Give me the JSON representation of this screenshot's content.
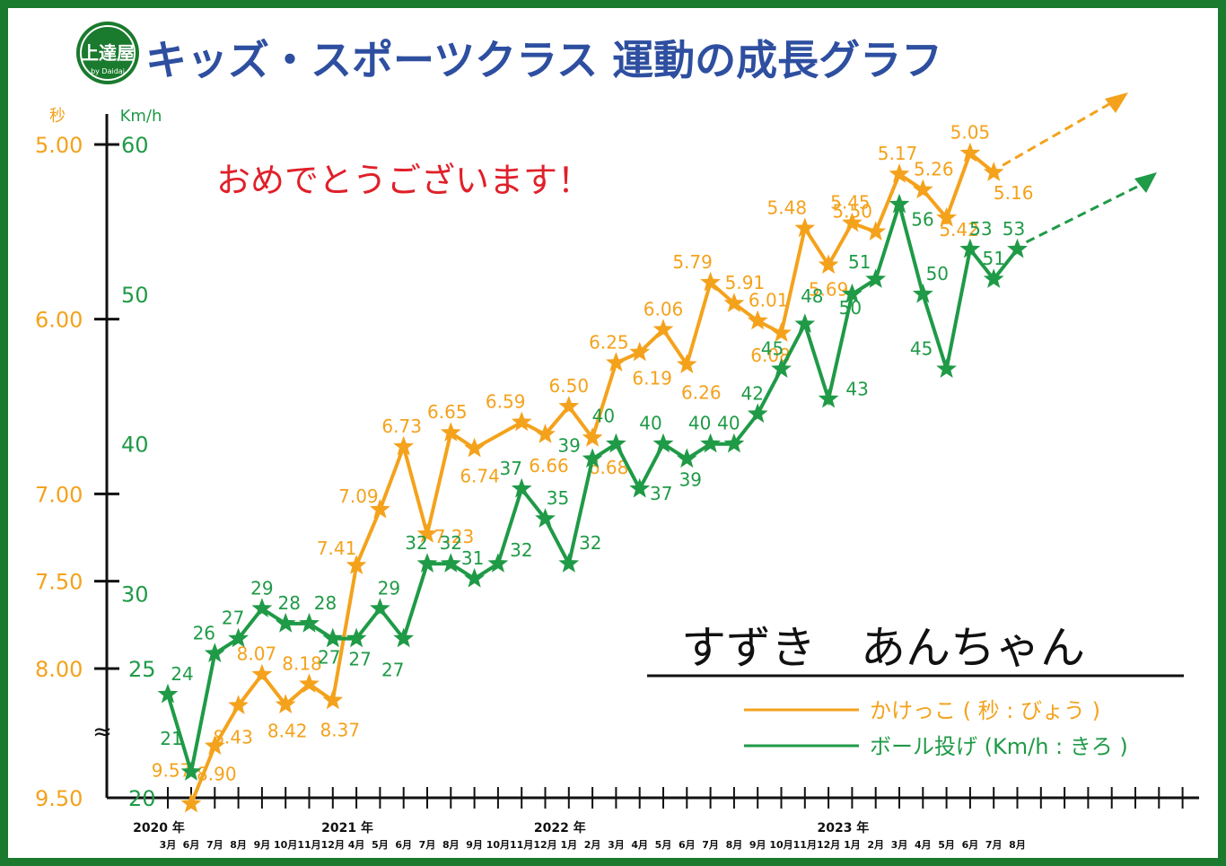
{
  "title": "キッズ・スポーツクラス 運動の成長グラフ",
  "logo_text": "上達屋",
  "logo_subtext": "by Daidai",
  "congrats": "おめでとうございます！",
  "student_name": "すずき　あんちゃん",
  "axis": {
    "left_unit": "秒",
    "right_unit": "Km/h",
    "left_ticks": [
      "5.00",
      "6.00",
      "7.00",
      "7.50",
      "8.00",
      "9.50"
    ],
    "right_ticks": [
      "60",
      "50",
      "40",
      "30",
      "25",
      "20"
    ],
    "break_mark": "≈"
  },
  "x_axis": {
    "years": [
      "2020 年",
      "2021 年",
      "2022 年",
      "2023 年"
    ],
    "months": [
      "3月",
      "6月",
      "7月",
      "8月",
      "9月",
      "10月",
      "11月",
      "12月",
      "4月",
      "5月",
      "6月",
      "7月",
      "8月",
      "9月",
      "10月",
      "11月",
      "12月",
      "1月",
      "2月",
      "3月",
      "4月",
      "5月",
      "6月",
      "7月",
      "8月",
      "9月",
      "10月",
      "11月",
      "12月",
      "1月",
      "2月",
      "3月",
      "4月",
      "5月",
      "6月",
      "7月",
      "8月"
    ]
  },
  "colors": {
    "running": "#f4a21c",
    "throwing": "#1f9a47",
    "title": "#2e4fa0",
    "frame": "#1a7a2e",
    "congrats": "#e0202a"
  },
  "chart_data": {
    "type": "line",
    "title": "キッズ・スポーツクラス 運動の成長グラフ",
    "x": [
      "2020-03",
      "2020-06",
      "2020-07",
      "2020-08",
      "2020-09",
      "2020-10",
      "2020-11",
      "2020-12",
      "2021-04",
      "2021-05",
      "2021-06",
      "2021-07",
      "2021-08",
      "2021-09",
      "2021-10",
      "2021-11",
      "2021-12",
      "2022-01",
      "2022-02",
      "2022-03",
      "2022-04",
      "2022-05",
      "2022-06",
      "2022-07",
      "2022-08",
      "2022-09",
      "2022-10",
      "2022-11",
      "2022-12",
      "2023-01",
      "2023-02",
      "2023-03",
      "2023-04",
      "2023-05",
      "2023-06",
      "2023-07",
      "2023-08"
    ],
    "series": [
      {
        "name": "かけっこ ( 秒 : びょう )",
        "axis": "left",
        "values": [
          null,
          9.57,
          8.9,
          8.43,
          8.07,
          8.42,
          8.18,
          8.37,
          7.41,
          7.09,
          6.73,
          7.23,
          6.65,
          6.74,
          null,
          6.59,
          6.66,
          6.5,
          6.68,
          6.25,
          6.19,
          6.06,
          6.26,
          5.79,
          5.91,
          6.01,
          6.08,
          5.48,
          5.69,
          5.45,
          5.5,
          5.17,
          5.26,
          5.42,
          5.05,
          5.16,
          null
        ],
        "labels": [
          "",
          "9.57",
          "8.90",
          "8.43",
          "8.07",
          "8.42",
          "8.18",
          "8.37",
          "7.41",
          "7.09",
          "6.73",
          "7.23",
          "6.65",
          "6.74",
          "",
          "6.59",
          "6.66",
          "6.50",
          "6.68",
          "6.25",
          "6.19",
          "6.06",
          "6.26",
          "5.79",
          "5.91",
          "6.01",
          "6.08",
          "5.48",
          "5.69",
          "5.45",
          "5.50",
          "5.17",
          "5.26",
          "5.42",
          "5.05",
          "5.16",
          ""
        ]
      },
      {
        "name": "ボール投げ (Km/h : きろ )",
        "axis": "right",
        "values": [
          24,
          21,
          26,
          27,
          29,
          28,
          28,
          27,
          27,
          29,
          27,
          32,
          32,
          31,
          32,
          37,
          35,
          32,
          39,
          40,
          37,
          40,
          39,
          40,
          40,
          42,
          45,
          48,
          43,
          50,
          51,
          56,
          50,
          45,
          53,
          51,
          53
        ],
        "labels": [
          "24",
          "21",
          "26",
          "27",
          "29",
          "28",
          "28",
          "27",
          "27",
          "29",
          "27",
          "32",
          "32",
          "31",
          "32",
          "37",
          "35",
          "32",
          "39",
          "40",
          "37",
          "40",
          "39",
          "40",
          "40",
          "42",
          "45",
          "48",
          "43",
          "50",
          "51",
          "56",
          "50",
          "45",
          "53",
          "51",
          "53"
        ]
      }
    ],
    "left_axis": {
      "label": "秒",
      "range": [
        5.0,
        9.5
      ],
      "ticks": [
        5.0,
        6.0,
        7.0,
        7.5,
        8.0,
        9.5
      ],
      "inverted": true,
      "broken": true
    },
    "right_axis": {
      "label": "Km/h",
      "range": [
        20,
        60
      ],
      "ticks": [
        20,
        25,
        30,
        40,
        50,
        60
      ],
      "broken": true
    },
    "legend": "bottom-right"
  }
}
